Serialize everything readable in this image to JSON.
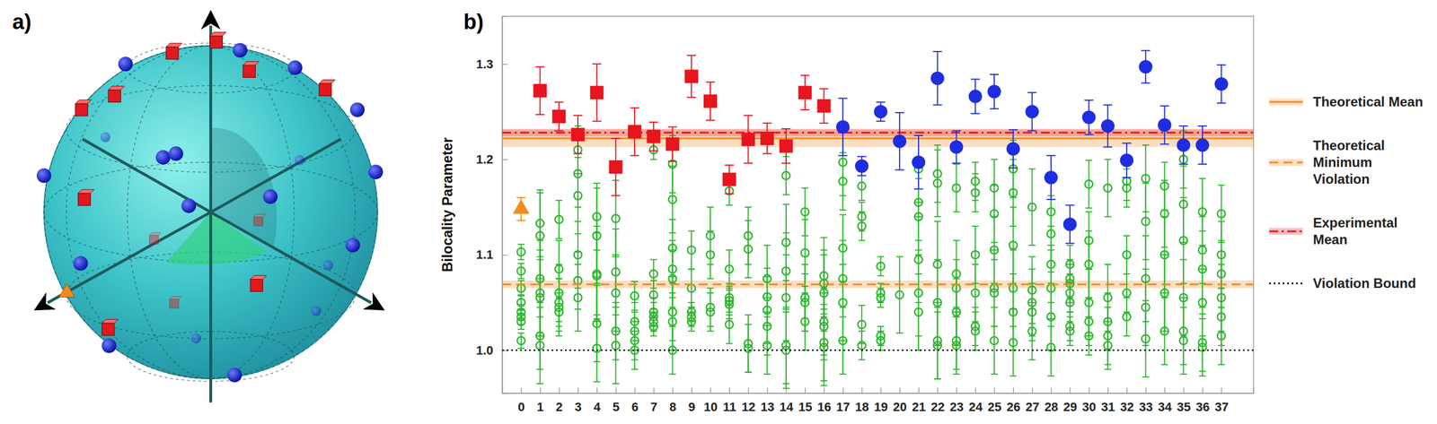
{
  "diagram": {
    "label": "a)"
  },
  "chart_data": {
    "type": "scatter",
    "panel_label": "b)",
    "y_label": "Bilocality Parameter",
    "xlim": [
      -1,
      38.7
    ],
    "xticks": [
      0,
      1,
      2,
      3,
      4,
      5,
      6,
      7,
      8,
      9,
      10,
      11,
      12,
      13,
      14,
      15,
      16,
      17,
      18,
      19,
      20,
      21,
      22,
      23,
      24,
      25,
      26,
      27,
      28,
      29,
      30,
      31,
      32,
      33,
      34,
      35,
      36,
      37
    ],
    "ylim": [
      0.955,
      1.35
    ],
    "yticks": [
      {
        "value": 1,
        "label": "1.0"
      },
      1.1,
      1.2,
      1.3
    ],
    "legend": "right",
    "series": [
      {
        "name": "Theoretical Mean",
        "type": "hline",
        "color": "#f28a1e",
        "line_style": "solid",
        "value": 1.222,
        "band": [
          1.213,
          1.231
        ]
      },
      {
        "name": "Theoretical Minimum Violation",
        "type": "hline",
        "color": "#f28a1e",
        "line_style": "dashed",
        "value": 1.069,
        "band": [
          1.065,
          1.073
        ]
      },
      {
        "name": "Experimental Mean",
        "type": "hline",
        "color": "#e8141e",
        "line_style": "dashdot",
        "value": 1.228,
        "band": [
          1.224,
          1.232
        ]
      },
      {
        "name": "Violation Bound",
        "type": "hline",
        "color": "#000000",
        "line_style": "dotted",
        "value": 1.0
      },
      {
        "type": "scatter",
        "color": "#f28a1e",
        "marker": "triangle",
        "x": [
          0
        ],
        "values": [
          1.148
        ],
        "errors": [
          0.012
        ]
      },
      {
        "type": "scatter",
        "color": "#e8141e",
        "marker": "square",
        "x": [
          1,
          2,
          3,
          4,
          5,
          6,
          7,
          8,
          9,
          10,
          11,
          12,
          13,
          14,
          15,
          16
        ],
        "values": [
          1.272,
          1.245,
          1.226,
          1.27,
          1.192,
          1.229,
          1.224,
          1.216,
          1.287,
          1.261,
          1.179,
          1.221,
          1.222,
          1.214,
          1.27,
          1.256
        ],
        "errors": [
          0.025,
          0.015,
          0.02,
          0.03,
          0.03,
          0.025,
          0.015,
          0.018,
          0.022,
          0.02,
          0.015,
          0.025,
          0.016,
          0.018,
          0.018,
          0.018
        ]
      },
      {
        "type": "scatter",
        "color": "#1f2de0",
        "marker": "circle",
        "x": [
          17,
          18,
          19,
          20,
          21,
          22,
          23,
          24,
          25,
          26,
          27,
          28,
          29,
          30,
          31,
          32,
          33,
          34,
          35,
          36,
          37
        ],
        "values": [
          1.234,
          1.193,
          1.25,
          1.219,
          1.197,
          1.285,
          1.213,
          1.266,
          1.271,
          1.211,
          1.25,
          1.181,
          1.132,
          1.244,
          1.235,
          1.199,
          1.297,
          1.236,
          1.215,
          1.215,
          1.279
        ],
        "errors": [
          0.03,
          0.01,
          0.01,
          0.03,
          0.028,
          0.028,
          0.017,
          0.018,
          0.018,
          0.02,
          0.02,
          0.023,
          0.02,
          0.018,
          0.022,
          0.018,
          0.017,
          0.02,
          0.02,
          0.02,
          0.02
        ]
      },
      {
        "type": "scatter",
        "color": "#2bb52b",
        "marker": "open-circle",
        "x": [
          0,
          0,
          0,
          0,
          0,
          0,
          0,
          0,
          1,
          1,
          1,
          1,
          1,
          1,
          1,
          2,
          2,
          2,
          2,
          2,
          2,
          3,
          3,
          3,
          3,
          3,
          3,
          4,
          4,
          4,
          4,
          4,
          4,
          5,
          5,
          5,
          5,
          5,
          6,
          6,
          6,
          6,
          6,
          7,
          7,
          7,
          7,
          7,
          7,
          7,
          8,
          8,
          8,
          8,
          8,
          8,
          8,
          8,
          9,
          9,
          9,
          9,
          9,
          10,
          10,
          10,
          10,
          11,
          11,
          11,
          11,
          11,
          11,
          12,
          12,
          12,
          12,
          13,
          13,
          13,
          13,
          13,
          14,
          14,
          14,
          14,
          14,
          14,
          15,
          15,
          15,
          15,
          15,
          16,
          16,
          16,
          16,
          16,
          16,
          16,
          17,
          17,
          17,
          17,
          17,
          17,
          18,
          18,
          18,
          18,
          18,
          19,
          19,
          19,
          19,
          19,
          20,
          21,
          21,
          21,
          21,
          21,
          21,
          22,
          22,
          22,
          22,
          22,
          22,
          23,
          23,
          23,
          23,
          23,
          23,
          24,
          24,
          24,
          24,
          24,
          24,
          25,
          25,
          25,
          25,
          25,
          25,
          26,
          26,
          26,
          26,
          26,
          26,
          27,
          27,
          27,
          27,
          27,
          28,
          28,
          28,
          28,
          28,
          28,
          29,
          29,
          29,
          29,
          29,
          29,
          29,
          30,
          30,
          30,
          30,
          30,
          30,
          31,
          31,
          31,
          31,
          31,
          32,
          32,
          32,
          32,
          32,
          33,
          33,
          33,
          33,
          33,
          34,
          34,
          34,
          34,
          34,
          35,
          35,
          35,
          35,
          35,
          35,
          36,
          36,
          36,
          36,
          36,
          36,
          37,
          37,
          37,
          37,
          37,
          37
        ],
        "values": [
          1.01,
          1.03,
          1.035,
          1.04,
          1.05,
          1.065,
          1.083,
          1.103,
          1.005,
          1.015,
          1.055,
          1.06,
          1.075,
          1.12,
          1.133,
          1.04,
          1.045,
          1.05,
          1.06,
          1.085,
          1.137,
          1.055,
          1.073,
          1.1,
          1.162,
          1.185,
          1.21,
          1.002,
          1.028,
          1.078,
          1.08,
          1.12,
          1.14,
          1.005,
          1.02,
          1.06,
          1.082,
          1.138,
          1.0,
          1.01,
          1.02,
          1.03,
          1.057,
          1.025,
          1.03,
          1.035,
          1.04,
          1.058,
          1.08,
          1.21,
          1.0,
          1.03,
          1.04,
          1.075,
          1.085,
          1.107,
          1.158,
          1.195,
          1.03,
          1.035,
          1.04,
          1.065,
          1.105,
          1.04,
          1.045,
          1.1,
          1.12,
          1.027,
          1.048,
          1.052,
          1.055,
          1.085,
          1.167,
          1.002,
          1.007,
          1.106,
          1.12,
          1.005,
          1.025,
          1.042,
          1.056,
          1.075,
          1.0,
          1.005,
          1.055,
          1.083,
          1.113,
          1.183,
          1.03,
          1.05,
          1.055,
          1.102,
          1.145,
          1.003,
          1.008,
          1.025,
          1.03,
          1.06,
          1.07,
          1.078,
          1.01,
          1.05,
          1.075,
          1.107,
          1.177,
          1.197,
          1.005,
          1.027,
          1.13,
          1.14,
          1.172,
          1.01,
          1.015,
          1.055,
          1.06,
          1.088,
          1.058,
          1.04,
          1.06,
          1.095,
          1.14,
          1.155,
          1.19,
          1.005,
          1.01,
          1.05,
          1.09,
          1.175,
          1.185,
          1.005,
          1.01,
          1.04,
          1.065,
          1.08,
          1.17,
          1.02,
          1.025,
          1.06,
          1.1,
          1.165,
          1.177,
          1.01,
          1.06,
          1.065,
          1.105,
          1.143,
          1.17,
          1.008,
          1.04,
          1.065,
          1.11,
          1.165,
          1.19,
          1.02,
          1.04,
          1.05,
          1.063,
          1.15,
          1.003,
          1.035,
          1.065,
          1.09,
          1.122,
          1.145,
          1.02,
          1.025,
          1.05,
          1.06,
          1.07,
          1.075,
          1.09,
          1.015,
          1.03,
          1.05,
          1.09,
          1.115,
          1.174,
          1.005,
          1.015,
          1.03,
          1.055,
          1.17,
          1.035,
          1.06,
          1.1,
          1.17,
          1.177,
          1.012,
          1.045,
          1.075,
          1.135,
          1.18,
          1.02,
          1.06,
          1.1,
          1.143,
          1.172,
          1.01,
          1.02,
          1.055,
          1.115,
          1.153,
          1.2,
          1.003,
          1.008,
          1.05,
          1.085,
          1.105,
          1.145,
          1.015,
          1.035,
          1.055,
          1.08,
          1.1,
          1.143
        ],
        "errors": [
          0.008,
          0.008,
          0.008,
          0.008,
          0.008,
          0.008,
          0.008,
          0.008,
          0.04,
          0.035,
          0.04,
          0.045,
          0.04,
          0.045,
          0.035,
          0.02,
          0.03,
          0.025,
          0.03,
          0.03,
          0.02,
          0.035,
          0.03,
          0.035,
          0.04,
          0.035,
          0.025,
          0.035,
          0.04,
          0.045,
          0.05,
          0.05,
          0.035,
          0.04,
          0.03,
          0.04,
          0.045,
          0.04,
          0.02,
          0.02,
          0.02,
          0.02,
          0.015,
          0.01,
          0.01,
          0.015,
          0.015,
          0.015,
          0.015,
          0.01,
          0.025,
          0.03,
          0.03,
          0.03,
          0.03,
          0.03,
          0.035,
          0.03,
          0.01,
          0.01,
          0.01,
          0.02,
          0.02,
          0.02,
          0.02,
          0.025,
          0.03,
          0.02,
          0.015,
          0.015,
          0.015,
          0.02,
          0.015,
          0.025,
          0.03,
          0.03,
          0.03,
          0.03,
          0.03,
          0.035,
          0.03,
          0.035,
          0.04,
          0.04,
          0.045,
          0.04,
          0.04,
          0.02,
          0.03,
          0.03,
          0.035,
          0.035,
          0.025,
          0.04,
          0.04,
          0.035,
          0.035,
          0.04,
          0.035,
          0.04,
          0.035,
          0.04,
          0.04,
          0.035,
          0.03,
          0.035,
          0.015,
          0.02,
          0.015,
          0.015,
          0.015,
          0.01,
          0.01,
          0.01,
          0.01,
          0.01,
          0.04,
          0.04,
          0.045,
          0.045,
          0.04,
          0.04,
          0.035,
          0.035,
          0.04,
          0.045,
          0.045,
          0.035,
          0.03,
          0.03,
          0.03,
          0.035,
          0.03,
          0.035,
          0.025,
          0.02,
          0.02,
          0.03,
          0.03,
          0.02,
          0.02,
          0.035,
          0.035,
          0.04,
          0.035,
          0.03,
          0.03,
          0.035,
          0.04,
          0.04,
          0.04,
          0.035,
          0.03,
          0.03,
          0.03,
          0.035,
          0.035,
          0.04,
          0.03,
          0.035,
          0.04,
          0.04,
          0.04,
          0.035,
          0.015,
          0.015,
          0.02,
          0.02,
          0.02,
          0.02,
          0.02,
          0.02,
          0.025,
          0.035,
          0.035,
          0.03,
          0.025,
          0.025,
          0.03,
          0.03,
          0.035,
          0.03,
          0.02,
          0.02,
          0.02,
          0.02,
          0.02,
          0.04,
          0.04,
          0.045,
          0.04,
          0.035,
          0.035,
          0.04,
          0.04,
          0.035,
          0.025,
          0.035,
          0.035,
          0.04,
          0.045,
          0.04,
          0.03,
          0.03,
          0.03,
          0.035,
          0.04,
          0.035,
          0.035,
          0.03,
          0.03,
          0.035,
          0.035,
          0.035,
          0.03
        ]
      }
    ]
  }
}
